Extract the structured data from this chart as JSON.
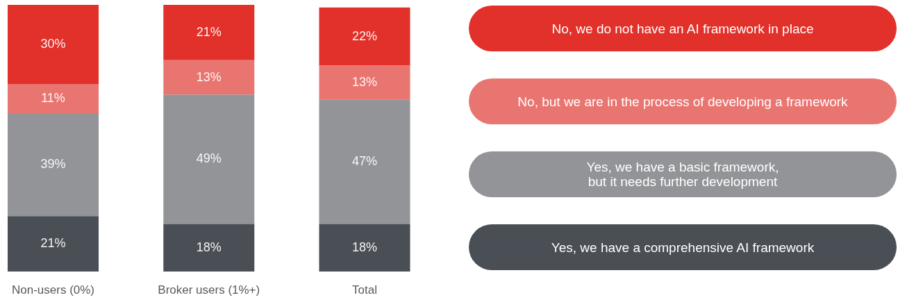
{
  "chart_data": {
    "type": "bar",
    "stacked": true,
    "legend": "right",
    "categories": [
      "Non-users (0%)",
      "Broker users (1%+)",
      "Total"
    ],
    "series": [
      {
        "name": "Yes, we have a comprehensive AI framework",
        "color": "#4a4e55",
        "values": [
          21,
          18,
          18
        ],
        "value_labels": [
          "21%",
          "18%",
          "18%"
        ]
      },
      {
        "name": "Yes, we have a basic framework,\nbut it needs further development",
        "color": "#939498",
        "values": [
          39,
          49,
          47
        ],
        "value_labels": [
          "39%",
          "49%",
          "47%"
        ]
      },
      {
        "name": "No, but we are in the process of developing a framework",
        "color": "#e97571",
        "values": [
          11,
          13,
          13
        ],
        "value_labels": [
          "11%",
          "13%",
          "13%"
        ]
      },
      {
        "name": "No, we do not have an AI framework in place",
        "color": "#e2312a",
        "values": [
          30,
          21,
          22
        ],
        "value_labels": [
          "30%",
          "21%",
          "22%"
        ]
      }
    ]
  }
}
